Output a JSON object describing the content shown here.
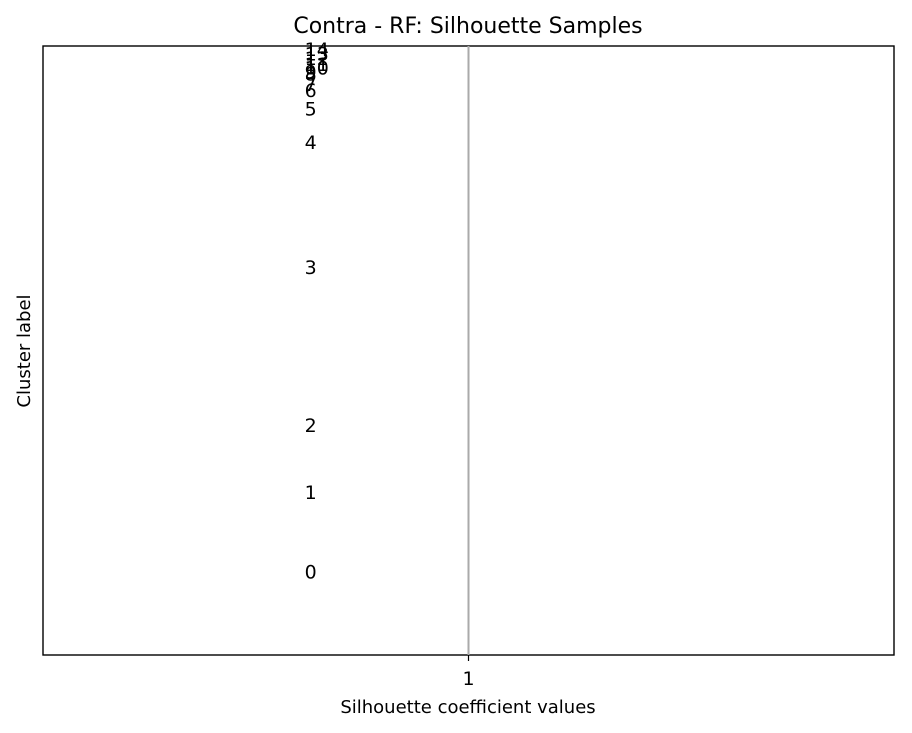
{
  "chart_data": {
    "type": "bar",
    "title": "Contra - RF: Silhouette Samples",
    "xlabel": "Silhouette coefficient values",
    "ylabel": "Cluster label",
    "x_ticks": [
      "1"
    ],
    "xlim": [
      0,
      2
    ],
    "reference_line": {
      "x": 1,
      "color": "#aaaaaa"
    },
    "clusters": [
      {
        "label": "0",
        "y": 0.135
      },
      {
        "label": "1",
        "y": 0.265
      },
      {
        "label": "2",
        "y": 0.375
      },
      {
        "label": "3",
        "y": 0.635
      },
      {
        "label": "4",
        "y": 0.84
      },
      {
        "label": "5",
        "y": 0.895
      },
      {
        "label": "6",
        "y": 0.925
      },
      {
        "label": "7",
        "y": 0.935
      },
      {
        "label": "8",
        "y": 0.952
      },
      {
        "label": "9",
        "y": 0.956
      },
      {
        "label": "10",
        "y": 0.962
      },
      {
        "label": "11",
        "y": 0.968
      },
      {
        "label": "12",
        "y": 0.978
      },
      {
        "label": "13",
        "y": 0.985
      },
      {
        "label": "14",
        "y": 0.993
      }
    ],
    "grid": false,
    "legend": "none"
  }
}
